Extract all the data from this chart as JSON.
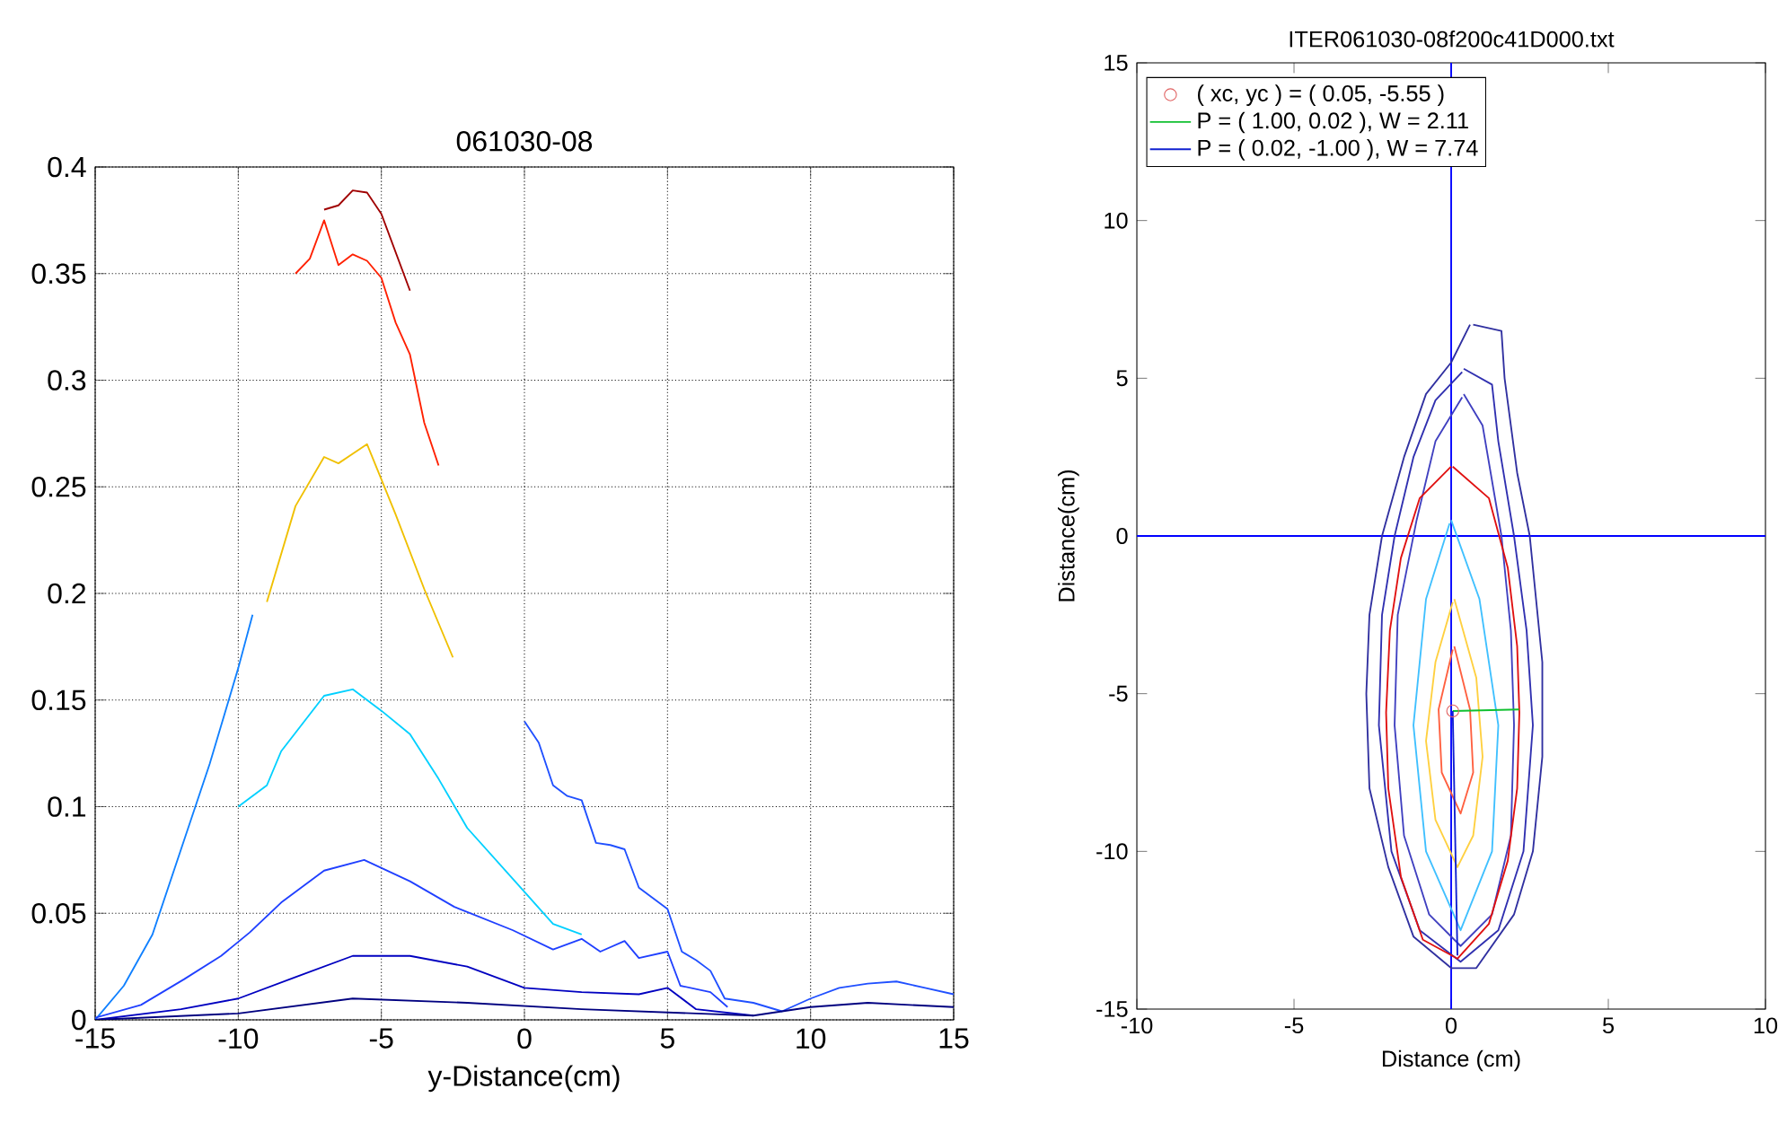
{
  "chart_data": [
    {
      "type": "line",
      "title": "061030-08",
      "xlabel": "y-Distance(cm)",
      "xlim": [
        -15,
        15
      ],
      "xticks": [
        -15,
        -10,
        -5,
        0,
        5,
        10,
        15
      ],
      "ylim": [
        0,
        0.4
      ],
      "yticks": [
        0,
        0.05,
        0.1,
        0.15,
        0.2,
        0.25,
        0.3,
        0.35,
        0.4
      ],
      "grid": true,
      "series": [
        {
          "color": "#a00000",
          "x": [
            -7,
            -6.5,
            -6,
            -5.5,
            -5,
            -4.5,
            -4
          ],
          "values": [
            0.38,
            0.382,
            0.389,
            0.388,
            0.378,
            0.36,
            0.342
          ]
        },
        {
          "color": "#ff2000",
          "x": [
            -8,
            -7.5,
            -7,
            -6.5,
            -6,
            -5.5,
            -5,
            -4.5,
            -4,
            -3.5,
            -3
          ],
          "values": [
            0.35,
            0.357,
            0.375,
            0.354,
            0.359,
            0.356,
            0.348,
            0.327,
            0.312,
            0.28,
            0.26
          ]
        },
        {
          "color": "#f0c000",
          "x": [
            -9,
            -8,
            -7,
            -6.5,
            -5.5,
            -4.5,
            -3.5,
            -2.5
          ],
          "values": [
            0.196,
            0.241,
            0.264,
            0.261,
            0.27,
            0.237,
            0.202,
            0.17
          ]
        },
        {
          "color": "#00d0ff",
          "x": [
            -10,
            -9,
            -8.5,
            -7,
            -6,
            -5,
            -4,
            -3,
            -2,
            -1,
            0,
            1,
            2
          ],
          "values": [
            0.1,
            0.11,
            0.126,
            0.152,
            0.155,
            0.145,
            0.134,
            0.113,
            0.09,
            0.075,
            0.06,
            0.045,
            0.04
          ]
        },
        {
          "color": "#1080ff",
          "x": [
            -15,
            -14,
            -13,
            -12,
            -11,
            -10,
            -9.5
          ],
          "values": [
            0,
            0.016,
            0.04,
            0.08,
            0.12,
            0.165,
            0.19
          ]
        },
        {
          "color": "#2050ff",
          "x": [
            0,
            0.5,
            1,
            1.5,
            2,
            2.5,
            3,
            3.5,
            4,
            4.5,
            5,
            5.5,
            6,
            6.5,
            7,
            8,
            9,
            10,
            11,
            12,
            13,
            14,
            15
          ],
          "values": [
            0.14,
            0.13,
            0.11,
            0.105,
            0.103,
            0.083,
            0.082,
            0.08,
            0.062,
            0.057,
            0.052,
            0.032,
            0.028,
            0.023,
            0.01,
            0.008,
            0.004,
            0.01,
            0.015,
            0.017,
            0.018,
            0.015,
            0.012
          ]
        },
        {
          "color": "#2040ff",
          "x": [
            -15,
            -13.4,
            -11.9,
            -10.6,
            -9.6,
            -8.5,
            -7,
            -5.6,
            -4,
            -2.45,
            -0.4,
            1,
            2,
            2.65,
            3.5,
            4,
            5,
            5.45,
            6.5,
            7.1
          ],
          "values": [
            0.001,
            0.007,
            0.019,
            0.03,
            0.041,
            0.055,
            0.07,
            0.075,
            0.065,
            0.053,
            0.042,
            0.033,
            0.038,
            0.032,
            0.037,
            0.029,
            0.032,
            0.016,
            0.013,
            0.006
          ]
        },
        {
          "color": "#0000c0",
          "x": [
            -15,
            -12,
            -10,
            -8,
            -6,
            -4,
            -2,
            0,
            2,
            4,
            5,
            6,
            8
          ],
          "values": [
            0,
            0.005,
            0.01,
            0.02,
            0.03,
            0.03,
            0.025,
            0.015,
            0.013,
            0.012,
            0.015,
            0.005,
            0.002
          ]
        },
        {
          "color": "#000080",
          "x": [
            -15,
            -10,
            -6,
            -2,
            2,
            6,
            8,
            10,
            12,
            15
          ],
          "values": [
            0,
            0.003,
            0.01,
            0.008,
            0.005,
            0.003,
            0.002,
            0.006,
            0.008,
            0.006
          ]
        }
      ]
    },
    {
      "type": "line",
      "title": "ITER061030-08f200c41D000.txt",
      "xlabel": "Distance (cm)",
      "ylabel": "Distance(cm)",
      "xlim": [
        -10,
        10
      ],
      "xticks": [
        -10,
        -5,
        0,
        5,
        10
      ],
      "ylim": [
        -15,
        15
      ],
      "yticks": [
        -15,
        -10,
        -5,
        0,
        5,
        10,
        15
      ],
      "legend": "top left",
      "series": [
        {
          "color": "#0000ff",
          "x": [
            0,
            0
          ],
          "values": [
            -15,
            15
          ]
        },
        {
          "color": "#0000ff",
          "x": [
            -10,
            10
          ],
          "values": [
            0,
            0
          ]
        },
        {
          "color": "#3030a0",
          "x": [
            0.7,
            1.6,
            1.7,
            2.1,
            2.5,
            2.7,
            2.9,
            2.9,
            2.6,
            2,
            0.8,
            0,
            -1.2,
            -2,
            -2.6,
            -2.7,
            -2.6,
            -2.2,
            -1.5,
            -0.8,
            0,
            0.6
          ],
          "values": [
            6.7,
            6.5,
            5,
            2,
            0,
            -2,
            -4,
            -7,
            -10,
            -12,
            -13.7,
            -13.7,
            -12.7,
            -10.5,
            -8,
            -5,
            -2.5,
            0,
            2.5,
            4.5,
            5.5,
            6.7
          ]
        },
        {
          "color": "#3030b0",
          "x": [
            0.4,
            1.3,
            1.5,
            2,
            2.4,
            2.6,
            2.3,
            1.5,
            0.3,
            -1,
            -1.9,
            -2.3,
            -2.2,
            -1.8,
            -1.2,
            -0.5,
            0.35
          ],
          "values": [
            5.3,
            4.8,
            3,
            0,
            -3,
            -6,
            -10,
            -12.5,
            -13.5,
            -12.5,
            -10,
            -6,
            -2.5,
            0,
            2.5,
            4.3,
            5.2
          ]
        },
        {
          "color": "#4040c0",
          "x": [
            0.4,
            1,
            1.6,
            1.9,
            2,
            1.9,
            1.3,
            0.3,
            -0.7,
            -1.5,
            -1.8,
            -1.7,
            -1.1,
            -0.5,
            0.35
          ],
          "values": [
            4.5,
            3.5,
            0,
            -3,
            -6,
            -9.5,
            -12,
            -13,
            -12,
            -9.5,
            -6,
            -2.5,
            0.5,
            3,
            4.4
          ]
        },
        {
          "color": "#40c0ff",
          "x": [
            0,
            0.9,
            1.5,
            1.3,
            0.3,
            -0.8,
            -1.2,
            -0.8,
            -0.05
          ],
          "values": [
            0.5,
            -2,
            -6,
            -10,
            -12.5,
            -10,
            -6,
            -2,
            0.4
          ]
        },
        {
          "color": "#ffd040",
          "x": [
            0.1,
            0.8,
            1,
            0.7,
            0.2,
            -0.5,
            -0.8,
            -0.5,
            0.05
          ],
          "values": [
            -2,
            -4.5,
            -7,
            -9.5,
            -10.5,
            -9,
            -6.5,
            -4,
            -2.1
          ]
        },
        {
          "color": "#ff6040",
          "x": [
            0.1,
            0.6,
            0.7,
            0.3,
            -0.3,
            -0.4,
            0.05
          ],
          "values": [
            -3.5,
            -5.5,
            -7.5,
            -8.8,
            -7.5,
            -5.5,
            -3.6
          ]
        },
        {
          "color": "#e01010",
          "x": [
            0.05,
            1.2,
            1.8,
            2.1,
            2.17,
            2.1,
            1.8,
            1.2,
            0.2,
            -0.9,
            -1.6,
            -2,
            -2.07,
            -1.95,
            -1.6,
            -1,
            0
          ],
          "values": [
            2.2,
            1.2,
            -1,
            -3.5,
            -5.6,
            -8,
            -10.3,
            -12.3,
            -13.4,
            -12.8,
            -10.8,
            -8,
            -5.6,
            -3,
            -0.7,
            1.2,
            2.2
          ]
        },
        {
          "type": "scatter",
          "marker": "circle",
          "name": "( xc, yc ) = (  0.05,  -5.55 )",
          "color": "#e06060",
          "x": [
            0.05
          ],
          "values": [
            -5.55
          ]
        },
        {
          "name": "P = (  1.00,   0.02 ),  W =  2.11",
          "color": "#10c030",
          "x": [
            0.05,
            2.16
          ],
          "values": [
            -5.55,
            -5.5
          ]
        },
        {
          "name": "P = (  0.02,  -1.00 ),  W =  7.74",
          "color": "#1020d0",
          "x": [
            0.05,
            0.2
          ],
          "values": [
            -5.55,
            -13.3
          ]
        }
      ]
    }
  ]
}
